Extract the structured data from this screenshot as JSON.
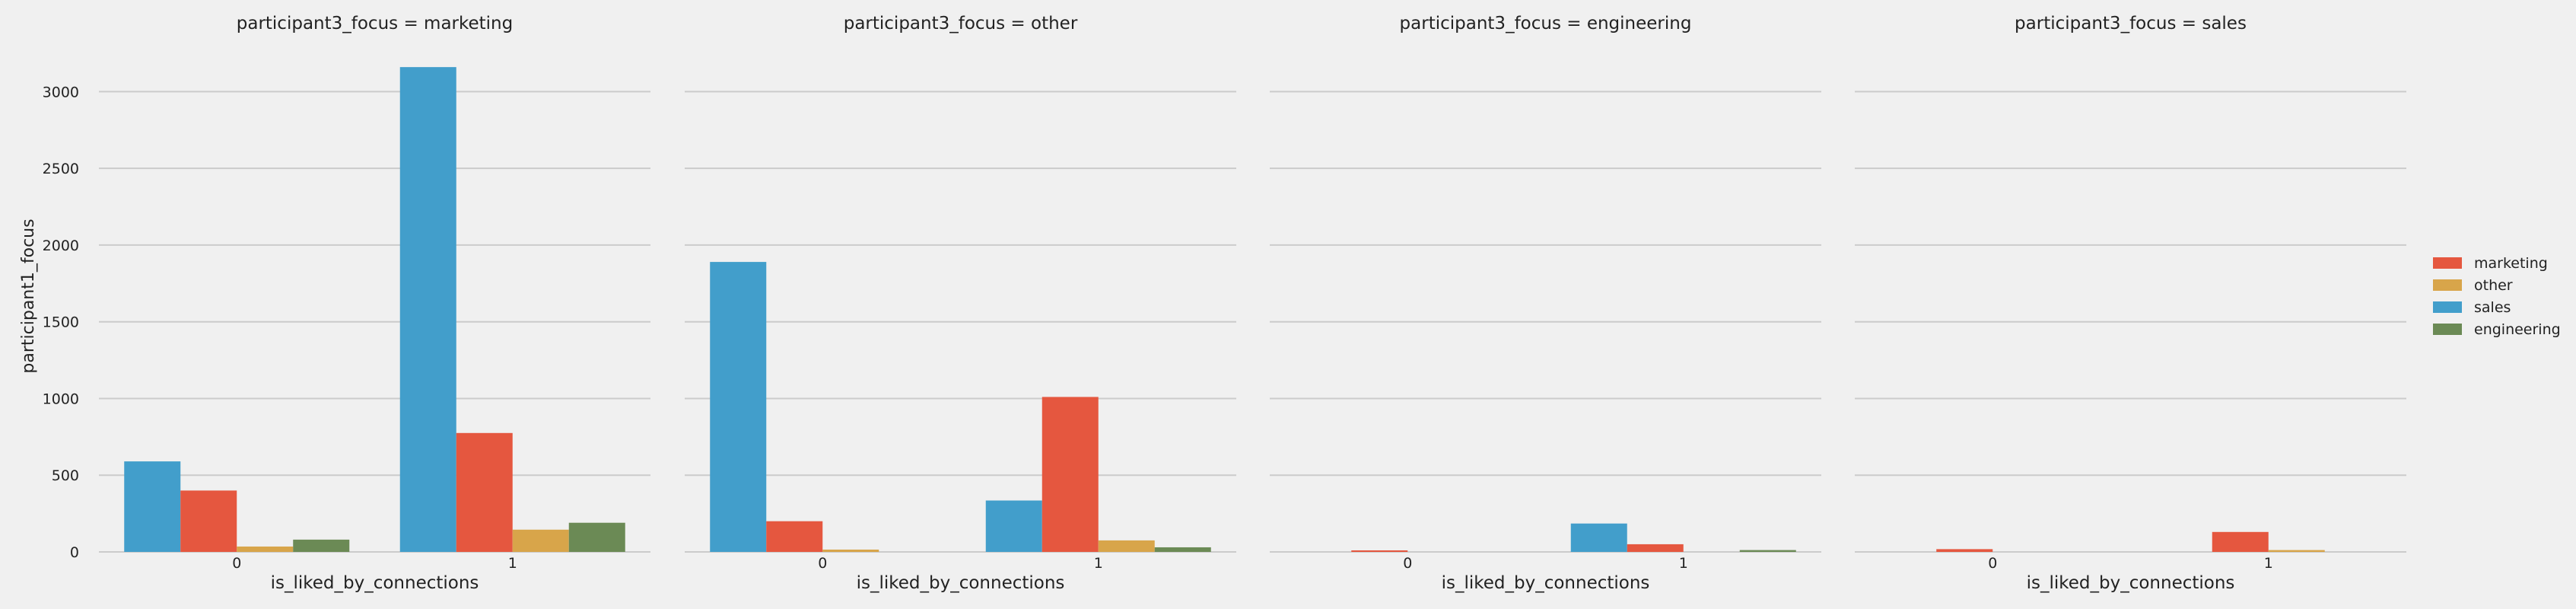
{
  "colors": {
    "background": "#f0f0f0",
    "grid": "#cbcbcb",
    "text": "#222222",
    "marketing": "#e5573f",
    "other": "#d8a54a",
    "sales": "#429ecb",
    "engineering": "#6b8a55"
  },
  "legend": {
    "placement": "right",
    "entries": [
      {
        "label": "marketing",
        "color_key": "marketing"
      },
      {
        "label": "other",
        "color_key": "other"
      },
      {
        "label": "sales",
        "color_key": "sales"
      },
      {
        "label": "engineering",
        "color_key": "engineering"
      }
    ]
  },
  "chart_data": {
    "type": "bar",
    "ylabel": "participant1_focus",
    "xlabel": "is_liked_by_connections",
    "ylim": [
      0,
      3250
    ],
    "yticks": [
      0,
      500,
      1000,
      1500,
      2000,
      2500,
      3000
    ],
    "grid": "horizontal",
    "series_order": [
      "sales",
      "marketing",
      "other",
      "engineering"
    ],
    "facets": [
      {
        "title": "participant3_focus = marketing",
        "categories": [
          "0",
          "1"
        ],
        "series": [
          {
            "name": "sales",
            "values": [
              590,
              3160
            ]
          },
          {
            "name": "marketing",
            "values": [
              400,
              775
            ]
          },
          {
            "name": "other",
            "values": [
              35,
              145
            ]
          },
          {
            "name": "engineering",
            "values": [
              80,
              190
            ]
          }
        ]
      },
      {
        "title": "participant3_focus = other",
        "categories": [
          "0",
          "1"
        ],
        "series": [
          {
            "name": "sales",
            "values": [
              1890,
              335
            ]
          },
          {
            "name": "marketing",
            "values": [
              200,
              1010
            ]
          },
          {
            "name": "other",
            "values": [
              15,
              75
            ]
          },
          {
            "name": "engineering",
            "values": [
              0,
              30
            ]
          }
        ]
      },
      {
        "title": "participant3_focus = engineering",
        "categories": [
          "0",
          "1"
        ],
        "series": [
          {
            "name": "sales",
            "values": [
              0,
              185
            ]
          },
          {
            "name": "marketing",
            "values": [
              10,
              50
            ]
          },
          {
            "name": "other",
            "values": [
              0,
              0
            ]
          },
          {
            "name": "engineering",
            "values": [
              0,
              12
            ]
          }
        ]
      },
      {
        "title": "participant3_focus = sales",
        "categories": [
          "0",
          "1"
        ],
        "series": [
          {
            "name": "sales",
            "values": [
              0,
              0
            ]
          },
          {
            "name": "marketing",
            "values": [
              18,
              130
            ]
          },
          {
            "name": "other",
            "values": [
              0,
              12
            ]
          },
          {
            "name": "engineering",
            "values": [
              0,
              0
            ]
          }
        ]
      }
    ]
  }
}
